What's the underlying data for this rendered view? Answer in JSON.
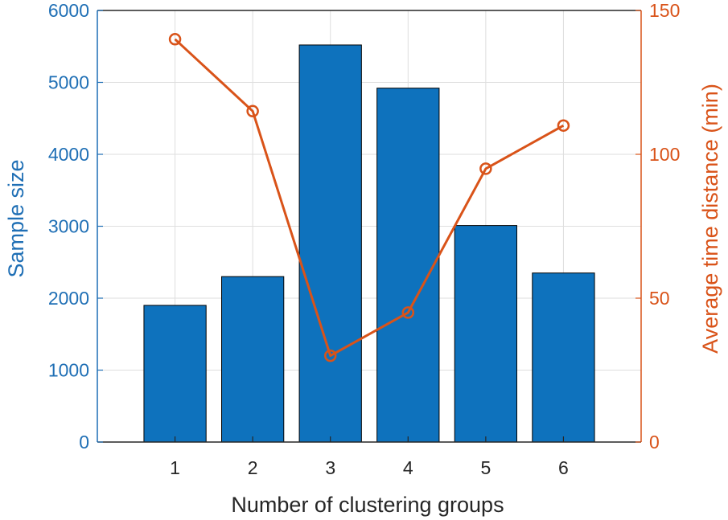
{
  "chart_data": {
    "type": "bar",
    "title": "",
    "xlabel": "Number of clustering groups",
    "categories": [
      "1",
      "2",
      "3",
      "4",
      "5",
      "6"
    ],
    "grid": true,
    "series": [
      {
        "name": "Sample size",
        "type": "bar",
        "axis": "left",
        "values": [
          1900,
          2300,
          5520,
          4920,
          3010,
          2350
        ],
        "color": "#0e72bd"
      },
      {
        "name": "Average time distance (min)",
        "type": "line",
        "axis": "right",
        "values": [
          140,
          115,
          30,
          45,
          95,
          110
        ],
        "color": "#d95319"
      }
    ],
    "left_axis": {
      "label": "Sample size",
      "ylim": [
        0,
        6000
      ],
      "ticks": [
        "0",
        "1000",
        "2000",
        "3000",
        "4000",
        "5000",
        "6000"
      ],
      "color": "#1f6fb5"
    },
    "right_axis": {
      "label": "Average time distance (min)",
      "ylim": [
        0,
        150
      ],
      "ticks": [
        "0",
        "50",
        "100",
        "150"
      ],
      "color": "#d95319"
    }
  }
}
